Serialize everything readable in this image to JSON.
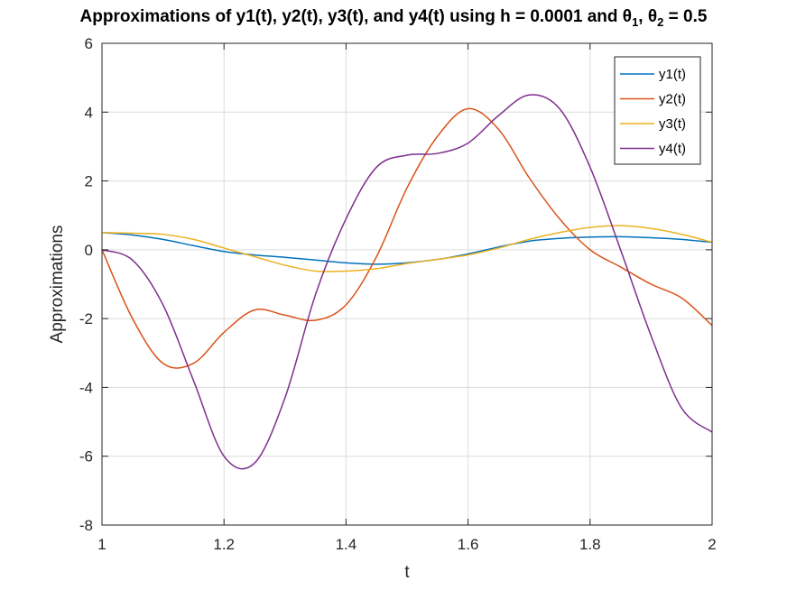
{
  "chart_data": {
    "type": "line",
    "title": "Approximations of y1(t), y2(t), y3(t), and y4(t) using h = 0.0001 and θ",
    "title_parts": {
      "main": "Approximations of y1(t), y2(t), y3(t), and y4(t) using h = 0.0001 and θ",
      "sub1": "1",
      "mid": ", θ",
      "sub2": "2",
      "tail": " = 0.5"
    },
    "xlabel": "t",
    "ylabel": "Approximations",
    "xlim": [
      1,
      2
    ],
    "ylim": [
      -8,
      6
    ],
    "xticks": [
      1,
      1.2,
      1.4,
      1.6,
      1.8,
      2
    ],
    "xtick_labels": [
      "1",
      "1.2",
      "1.4",
      "1.6",
      "1.8",
      "2"
    ],
    "yticks": [
      -8,
      -6,
      -4,
      -2,
      0,
      2,
      4,
      6
    ],
    "ytick_labels": [
      "-8",
      "-6",
      "-4",
      "-2",
      "0",
      "2",
      "4",
      "6"
    ],
    "grid": true,
    "legend_position": "top-right",
    "x": [
      1.0,
      1.05,
      1.1,
      1.15,
      1.2,
      1.25,
      1.3,
      1.35,
      1.4,
      1.45,
      1.5,
      1.55,
      1.6,
      1.65,
      1.7,
      1.75,
      1.8,
      1.85,
      1.9,
      1.95,
      2.0
    ],
    "series": [
      {
        "name": "y1(t)",
        "color": "#0072BD",
        "values": [
          0.5,
          0.43,
          0.3,
          0.12,
          -0.05,
          -0.15,
          -0.22,
          -0.3,
          -0.38,
          -0.42,
          -0.38,
          -0.28,
          -0.12,
          0.08,
          0.25,
          0.33,
          0.37,
          0.38,
          0.35,
          0.3,
          0.22
        ]
      },
      {
        "name": "y2(t)",
        "color": "#D95319",
        "values": [
          0.0,
          -2.0,
          -3.3,
          -3.3,
          -2.4,
          -1.75,
          -1.9,
          -2.05,
          -1.6,
          -0.2,
          1.8,
          3.3,
          4.1,
          3.5,
          2.1,
          0.9,
          0.0,
          -0.5,
          -1.0,
          -1.4,
          -2.2
        ]
      },
      {
        "name": "y3(t)",
        "color": "#EDB120",
        "values": [
          0.5,
          0.48,
          0.45,
          0.3,
          0.05,
          -0.2,
          -0.45,
          -0.62,
          -0.62,
          -0.55,
          -0.4,
          -0.28,
          -0.15,
          0.05,
          0.3,
          0.5,
          0.65,
          0.7,
          0.62,
          0.45,
          0.22
        ]
      },
      {
        "name": "y4(t)",
        "color": "#7E2F8E",
        "values": [
          0.0,
          -0.3,
          -1.6,
          -3.8,
          -6.0,
          -6.2,
          -4.3,
          -1.3,
          0.9,
          2.4,
          2.75,
          2.8,
          3.1,
          3.9,
          4.5,
          4.1,
          2.4,
          0.0,
          -2.5,
          -4.6,
          -5.3
        ]
      }
    ]
  }
}
